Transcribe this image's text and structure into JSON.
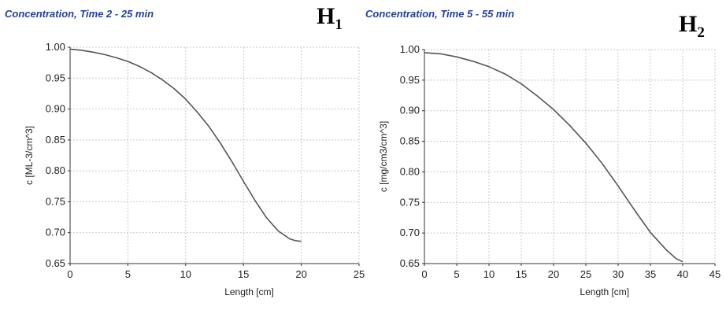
{
  "chart_data": [
    {
      "type": "line",
      "title": "Concentration, Time 2 - 25 min",
      "panel_tag": {
        "letter": "H",
        "index": "1"
      },
      "xlabel": "Length [cm]",
      "ylabel": "c [ML-3/cm^3]",
      "xlim": [
        0,
        25
      ],
      "ylim": [
        0.65,
        1.0
      ],
      "xticks": [
        0,
        5,
        10,
        15,
        20,
        25
      ],
      "yticks": [
        0.65,
        0.7,
        0.75,
        0.8,
        0.85,
        0.9,
        0.95,
        1.0
      ],
      "grid": true,
      "line_color": "#555555",
      "series": [
        {
          "x": [
            0,
            1,
            2,
            3,
            4,
            5,
            6,
            7,
            8,
            9,
            10,
            11,
            12,
            13,
            14,
            15,
            16,
            17,
            18,
            19,
            19.5,
            20
          ],
          "y": [
            0.997,
            0.995,
            0.992,
            0.988,
            0.983,
            0.977,
            0.969,
            0.959,
            0.947,
            0.933,
            0.916,
            0.895,
            0.872,
            0.845,
            0.815,
            0.783,
            0.752,
            0.724,
            0.703,
            0.69,
            0.687,
            0.686
          ]
        }
      ]
    },
    {
      "type": "line",
      "title": "Concentration, Time 5 - 55 min",
      "panel_tag": {
        "letter": "H",
        "index": "2"
      },
      "xlabel": "Length [cm]",
      "ylabel": "c [mg/cm3/cm^3]",
      "xlim": [
        0,
        45
      ],
      "ylim": [
        0.65,
        1.0
      ],
      "xticks": [
        0,
        5,
        10,
        15,
        20,
        25,
        30,
        35,
        40,
        45
      ],
      "yticks": [
        0.65,
        0.7,
        0.75,
        0.8,
        0.85,
        0.9,
        0.95,
        1.0
      ],
      "grid": true,
      "line_color": "#555555",
      "series": [
        {
          "x": [
            0,
            2.5,
            5,
            7.5,
            10,
            12.5,
            15,
            17.5,
            20,
            22.5,
            25,
            27.5,
            30,
            32.5,
            35,
            37.5,
            39,
            40
          ],
          "y": [
            0.995,
            0.993,
            0.988,
            0.981,
            0.972,
            0.96,
            0.944,
            0.924,
            0.902,
            0.876,
            0.847,
            0.814,
            0.777,
            0.738,
            0.701,
            0.672,
            0.658,
            0.653
          ]
        }
      ]
    }
  ]
}
